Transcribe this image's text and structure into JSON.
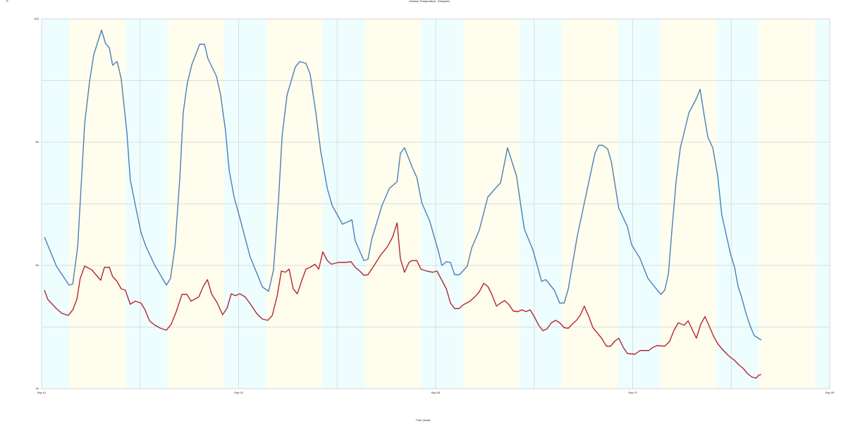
{
  "chart_data": {
    "type": "line",
    "y_unit": "°F",
    "x_label": "Time (local)",
    "xlim": [
      0,
      192
    ],
    "xticks": [
      {
        "value": 0,
        "label": "Sep 01"
      },
      {
        "value": 48,
        "label": "Sep 03"
      },
      {
        "value": 96,
        "label": "Sep 05"
      },
      {
        "value": 144,
        "label": "Sep 07"
      },
      {
        "value": 192,
        "label": "Sep 09"
      }
    ],
    "minor_xticks": [
      24,
      72,
      120,
      168
    ],
    "ylim": [
      40,
      100
    ],
    "yticks": [
      40,
      60,
      80,
      100
    ],
    "minor_yticks": [
      50,
      70,
      90
    ],
    "grid": true,
    "daytime": {
      "start": 6.7,
      "end": 20.4,
      "period": 24,
      "day_color": "#fffdee",
      "night_color": "#eefefe"
    },
    "legend": "top",
    "series": [
      {
        "name": "Outdoor Temperature",
        "color": "#4a7fb8",
        "x": [
          0.7,
          3.6,
          6.7,
          7.6,
          8.8,
          10.5,
          11.7,
          12.7,
          14.6,
          15.6,
          16.5,
          17.3,
          18.4,
          19.4,
          20.8,
          21.6,
          22.8,
          24.2,
          25.4,
          27.6,
          30.4,
          31.4,
          32.5,
          33.7,
          34.5,
          35.5,
          36.6,
          38.5,
          39.7,
          40.5,
          42.6,
          43.6,
          44.8,
          45.7,
          46.9,
          48.3,
          50.8,
          53.8,
          55.3,
          56.5,
          57.7,
          58.6,
          59.8,
          61.8,
          62.9,
          64.4,
          65.4,
          66.8,
          68.0,
          69.6,
          70.8,
          73.3,
          75.6,
          76.4,
          78.5,
          79.5,
          80.4,
          82.9,
          84.7,
          86.6,
          87.4,
          88.4,
          90.3,
          91.4,
          92.6,
          94.6,
          96.7,
          97.5,
          98.6,
          99.6,
          100.6,
          101.8,
          103.7,
          104.8,
          106.6,
          108.7,
          110.8,
          111.8,
          113.5,
          115.7,
          116.8,
          117.6,
          119.7,
          121.8,
          122.8,
          124.9,
          126.2,
          127.3,
          128.3,
          130.5,
          132.8,
          134.8,
          135.7,
          136.7,
          137.9,
          138.8,
          140.6,
          142.7,
          143.7,
          145.8,
          147.7,
          150.1,
          150.9,
          151.8,
          152.7,
          153.5,
          154.6,
          155.6,
          157.7,
          159.5,
          160.4,
          161.3,
          162.3,
          163.5,
          164.7,
          165.7,
          167.8,
          168.8,
          169.7,
          170.5,
          171.6,
          172.6,
          173.6,
          175.3
        ],
        "values": [
          64.6,
          59.9,
          56.8,
          57.0,
          63.1,
          83.1,
          89.9,
          94.2,
          98.2,
          96.0,
          95.3,
          92.5,
          93.1,
          90.3,
          81.4,
          73.9,
          69.9,
          65.4,
          63.1,
          60.0,
          56.8,
          57.9,
          63.1,
          74.5,
          84.8,
          89.6,
          92.6,
          95.9,
          95.9,
          93.6,
          90.7,
          87.7,
          81.9,
          75.4,
          71.1,
          67.7,
          61.4,
          56.5,
          55.8,
          59.3,
          70.5,
          81.1,
          87.7,
          92.2,
          93.1,
          92.8,
          91.1,
          84.8,
          78.5,
          72.5,
          69.7,
          66.7,
          67.4,
          64.0,
          60.8,
          61.0,
          64.2,
          69.7,
          72.5,
          73.6,
          78.2,
          79.1,
          75.9,
          74.3,
          70.2,
          67.1,
          62.2,
          60.0,
          60.6,
          60.5,
          58.5,
          58.5,
          59.9,
          62.9,
          65.7,
          71.1,
          72.7,
          73.4,
          79.1,
          74.5,
          69.4,
          65.9,
          62.5,
          57.4,
          57.7,
          56.0,
          53.9,
          53.9,
          56.2,
          64.8,
          72.0,
          78.2,
          79.5,
          79.5,
          78.9,
          76.8,
          69.3,
          66.3,
          63.4,
          61.1,
          57.9,
          55.9,
          55.3,
          56.0,
          58.7,
          65.4,
          73.9,
          79.1,
          84.8,
          87.1,
          88.6,
          84.8,
          80.8,
          79.1,
          74.5,
          68.2,
          61.9,
          59.7,
          56.5,
          54.9,
          52.2,
          50.2,
          48.6,
          47.9
        ]
      },
      {
        "name": "Dewpoint",
        "color": "#b5262d",
        "x": [
          0.7,
          1.5,
          3.6,
          5.0,
          6.5,
          7.6,
          8.6,
          9.4,
          10.5,
          12.2,
          14.4,
          15.3,
          16.5,
          17.3,
          18.4,
          19.4,
          20.4,
          21.6,
          22.8,
          24.2,
          25.2,
          26.3,
          27.6,
          29.0,
          30.4,
          31.6,
          32.8,
          34.2,
          35.4,
          36.4,
          38.3,
          39.3,
          40.4,
          41.4,
          42.8,
          44.1,
          45.2,
          46.2,
          47.2,
          48.3,
          49.6,
          51.0,
          52.4,
          53.8,
          55.1,
          56.2,
          57.4,
          58.4,
          59.4,
          60.3,
          61.3,
          62.3,
          63.4,
          64.4,
          65.4,
          66.6,
          67.5,
          68.5,
          69.6,
          70.6,
          72.3,
          74.0,
          75.4,
          76.4,
          77.5,
          78.5,
          79.5,
          80.9,
          82.6,
          84.3,
          85.5,
          86.6,
          87.4,
          88.4,
          89.5,
          90.3,
          91.4,
          92.4,
          93.8,
          95.3,
          96.3,
          97.5,
          98.6,
          99.6,
          100.6,
          101.7,
          102.7,
          104.4,
          105.8,
          106.6,
          107.7,
          108.7,
          109.6,
          110.8,
          111.8,
          112.8,
          113.9,
          114.9,
          116.0,
          117.0,
          118.0,
          119.0,
          120.0,
          121.1,
          122.1,
          123.1,
          124.2,
          125.2,
          126.2,
          127.3,
          128.3,
          129.3,
          130.3,
          131.2,
          132.2,
          133.3,
          134.3,
          135.3,
          136.4,
          137.6,
          138.6,
          139.6,
          140.6,
          141.7,
          142.7,
          144.6,
          145.8,
          147.9,
          148.9,
          149.9,
          151.8,
          153.0,
          154.0,
          155.1,
          156.5,
          157.5,
          158.5,
          159.5,
          160.6,
          161.6,
          162.6,
          163.7,
          164.7,
          165.7,
          166.8,
          167.8,
          168.8,
          169.8,
          170.9,
          171.9,
          173.0,
          174.0,
          174.7,
          175.3
        ],
        "values": [
          56.0,
          54.5,
          53.0,
          52.2,
          51.9,
          52.8,
          54.5,
          57.9,
          59.9,
          59.3,
          57.6,
          59.7,
          59.7,
          58.2,
          57.4,
          56.2,
          56.0,
          53.7,
          54.2,
          53.9,
          52.8,
          51.0,
          50.3,
          49.8,
          49.5,
          50.5,
          52.5,
          55.3,
          55.3,
          54.2,
          54.9,
          56.5,
          57.7,
          55.4,
          53.9,
          52.0,
          53.1,
          55.4,
          55.1,
          55.4,
          54.9,
          53.6,
          52.2,
          51.3,
          51.1,
          51.9,
          55.1,
          59.1,
          58.9,
          59.4,
          56.2,
          55.4,
          57.6,
          59.4,
          59.7,
          60.2,
          59.4,
          62.2,
          60.8,
          60.2,
          60.5,
          60.5,
          60.6,
          59.7,
          59.1,
          58.4,
          58.5,
          59.9,
          61.7,
          63.1,
          64.6,
          66.9,
          61.1,
          58.9,
          60.5,
          60.8,
          60.8,
          59.4,
          59.1,
          58.9,
          59.1,
          57.6,
          56.2,
          53.9,
          53.0,
          53.0,
          53.6,
          54.2,
          55.1,
          55.7,
          57.1,
          56.6,
          55.4,
          53.4,
          53.9,
          54.3,
          53.6,
          52.6,
          52.5,
          52.8,
          52.5,
          52.8,
          51.7,
          50.3,
          49.4,
          49.7,
          50.7,
          51.1,
          50.7,
          49.9,
          49.8,
          50.5,
          51.1,
          51.9,
          53.4,
          51.7,
          49.9,
          49.1,
          48.2,
          46.9,
          46.9,
          47.7,
          48.2,
          46.7,
          45.7,
          45.6,
          46.2,
          46.2,
          46.7,
          47.0,
          46.9,
          47.7,
          49.4,
          50.7,
          50.3,
          51.0,
          49.6,
          48.2,
          50.5,
          51.7,
          50.2,
          48.5,
          47.3,
          46.5,
          45.7,
          45.1,
          44.6,
          43.9,
          43.3,
          42.5,
          41.9,
          41.7,
          42.2,
          42.3
        ]
      }
    ]
  }
}
